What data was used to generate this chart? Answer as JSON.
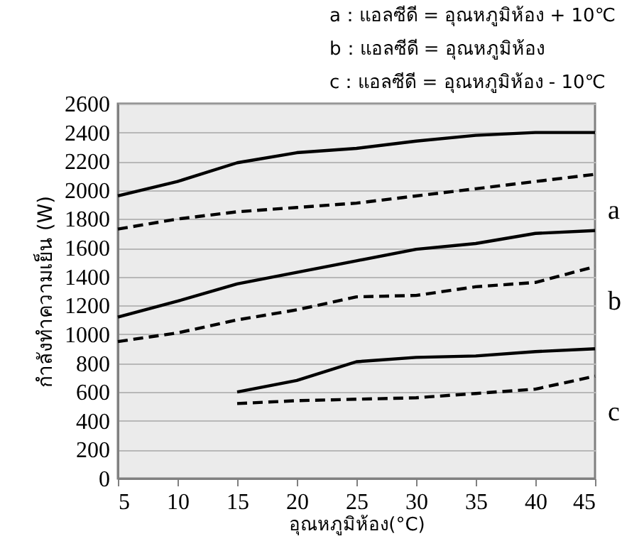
{
  "chart_data": {
    "type": "line",
    "xlabel": "อุณหภูมิห้อง(°C)",
    "ylabel": "กำลังทำความเย็น (W)",
    "annotations": [
      "a：แอลซีดี = อุณหภูมิห้อง + 10℃",
      "b：แอลซีดี = อุณหภูมิห้อง",
      "c：แอลซีดี = อุณหภูมิห้อง - 10℃",
      "a",
      "b",
      "c"
    ],
    "x": [
      5,
      10,
      15,
      20,
      25,
      30,
      35,
      40,
      45
    ],
    "series": [
      {
        "color": "#000000",
        "line_style": "solid",
        "values": [
          1960,
          2060,
          2190,
          2260,
          2290,
          2340,
          2380,
          2400,
          2400
        ]
      },
      {
        "color": "#000000",
        "line_style": "dashed",
        "values": [
          1730,
          1800,
          1850,
          1880,
          1910,
          1960,
          2010,
          2060,
          2110
        ]
      },
      {
        "color": "#000000",
        "line_style": "solid",
        "values": [
          1120,
          1230,
          1350,
          1430,
          1510,
          1590,
          1630,
          1700,
          1720
        ]
      },
      {
        "color": "#000000",
        "line_style": "dashed",
        "values": [
          950,
          1010,
          1100,
          1170,
          1260,
          1270,
          1330,
          1360,
          1470
        ]
      },
      {
        "color": "#000000",
        "line_style": "solid",
        "values": [
          null,
          null,
          600,
          680,
          810,
          840,
          850,
          880,
          900
        ]
      },
      {
        "color": "#000000",
        "line_style": "dashed",
        "values": [
          null,
          null,
          520,
          540,
          550,
          560,
          590,
          620,
          710
        ]
      }
    ],
    "xlim": [
      5,
      45
    ],
    "xticks": [
      5,
      10,
      15,
      20,
      25,
      30,
      35,
      40,
      45
    ],
    "ylim": [
      0,
      2600
    ],
    "yticks": [
      0,
      200,
      400,
      600,
      800,
      1000,
      1200,
      1400,
      1600,
      1800,
      2000,
      2200,
      2400,
      2600
    ],
    "grid": "y",
    "legend": false,
    "marker": "none"
  }
}
